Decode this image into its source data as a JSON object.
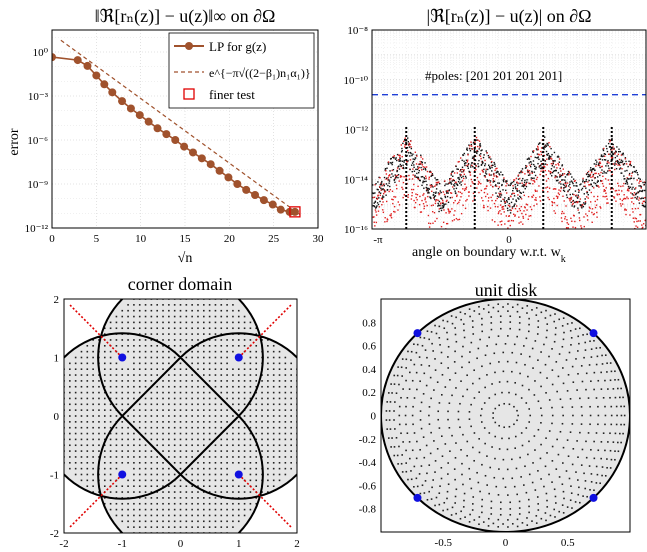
{
  "chart_data": [
    {
      "id": "error-plot",
      "type": "line",
      "title": "‖ℜ[rₙ(z)] − u(z)‖∞ on ∂Ω",
      "xlabel": "√n",
      "ylabel": "error",
      "xlim": [
        0,
        30
      ],
      "ylim_log10": [
        -12,
        1.5
      ],
      "yscale": "log",
      "xticks": [
        "0",
        "5",
        "10",
        "15",
        "20",
        "25",
        "30"
      ],
      "yticks": [
        {
          "exp": 0,
          "label": "10⁰"
        },
        {
          "exp": -3,
          "label": "10⁻³"
        },
        {
          "exp": -6,
          "label": "10⁻⁶"
        },
        {
          "exp": -9,
          "label": "10⁻⁹"
        },
        {
          "exp": -12,
          "label": "10⁻¹²"
        }
      ],
      "grid": true,
      "legend_position": "top-right",
      "legend": [
        "LP for g(z)",
        "e^{−π√((2−β₁)n₁α₁)}",
        "finer test"
      ],
      "series": [
        {
          "name": "LP for g(z)",
          "color": "#a0522d",
          "x": [
            0,
            2.83,
            4.0,
            4.9,
            5.66,
            6.32,
            6.93,
            7.48,
            8.0,
            8.49,
            8.94,
            9.38,
            9.8,
            10.2,
            10.58,
            10.95,
            11.31,
            11.66,
            12.0,
            12.33,
            12.65,
            12.96,
            13.27,
            13.56,
            13.86,
            14.14,
            14.42,
            14.7,
            14.97,
            15.23,
            15.49,
            15.75,
            16.0,
            16.25,
            16.49,
            16.73,
            16.97,
            17.2,
            17.44,
            17.66,
            17.89,
            18.11,
            18.33,
            18.55,
            18.76,
            18.97,
            19.18,
            19.39,
            19.6,
            19.8
          ],
          "x_display": [
            0,
            2.9,
            4.0,
            5.0,
            5.9,
            6.8,
            7.9,
            8.9,
            9.9,
            10.9,
            11.9,
            12.9,
            13.9,
            14.9,
            15.9,
            16.9,
            17.9,
            18.9,
            19.9,
            20.9,
            21.9,
            22.9,
            23.9,
            24.9,
            25.8,
            26.8,
            27.4
          ],
          "log10_y": [
            -0.35,
            -0.55,
            -0.95,
            -1.6,
            -2.2,
            -2.75,
            -3.35,
            -3.85,
            -4.3,
            -4.75,
            -5.2,
            -5.6,
            -6.0,
            -6.45,
            -6.85,
            -7.25,
            -7.65,
            -8.1,
            -8.55,
            -9.0,
            -9.4,
            -9.75,
            -10.1,
            -10.4,
            -10.75,
            -10.9,
            -10.9
          ]
        },
        {
          "name": "e^{−π√((2−β₁)n₁α₁)}",
          "color": "#a0522d",
          "style": "dashed",
          "x": [
            1,
            28
          ],
          "log10_y": [
            0.8,
            -11.1
          ]
        },
        {
          "name": "finer test",
          "color": "#e00000",
          "marker": "square",
          "x": [
            27.4
          ],
          "log10_y": [
            -10.9
          ]
        }
      ]
    },
    {
      "id": "boundary-error-plot",
      "type": "scatter",
      "title": "|ℜ[rₙ(z)] − u(z)| on ∂Ω",
      "xlabel": "angle on boundary w.r.t. w",
      "xlabel_subscript": "k",
      "xticks": [
        "-π",
        "0"
      ],
      "yscale": "log",
      "ylim_log10": [
        -16,
        -8
      ],
      "yticks": [
        {
          "exp": -8,
          "label": "10⁻⁸"
        },
        {
          "exp": -10,
          "label": "10⁻¹⁰"
        },
        {
          "exp": -12,
          "label": "10⁻¹²"
        },
        {
          "exp": -14,
          "label": "10⁻¹⁴"
        },
        {
          "exp": -16,
          "label": "10⁻¹⁶"
        }
      ],
      "grid": true,
      "annotation": "#poles: [201 201 201 201]",
      "reference_line_log10": -10.6,
      "reference_line_color": "#1f3fd6",
      "peak_positions": [
        0.125,
        0.375,
        0.625,
        0.875
      ],
      "peak_log10": -11.9
    },
    {
      "id": "corner-domain-plot",
      "type": "scatter",
      "title": "corner domain",
      "xlim": [
        -2,
        2
      ],
      "ylim": [
        -2,
        2
      ],
      "xticks": [
        "-2",
        "-1",
        "0",
        "1",
        "2"
      ],
      "yticks": [
        "2",
        "1",
        "0",
        "-1",
        "-2"
      ],
      "corners": [
        [
          1,
          1
        ],
        [
          -1,
          1
        ],
        [
          -1,
          -1
        ],
        [
          1,
          -1
        ]
      ],
      "corner_color": "#1010e0",
      "pole_line_color": "#e00000",
      "fill_color": "#e6e6e6"
    },
    {
      "id": "unit-disk-plot",
      "type": "scatter",
      "title": "unit disk",
      "xlim": [
        -1,
        1
      ],
      "ylim": [
        -1,
        1
      ],
      "xticks": [
        "-0.5",
        "0",
        "0.5"
      ],
      "yticks": [
        "0.8",
        "0.6",
        "0.4",
        "0.2",
        "0",
        "-0.2",
        "-0.4",
        "-0.6",
        "-0.8"
      ],
      "corners": [
        [
          0.707,
          0.707
        ],
        [
          -0.707,
          0.707
        ],
        [
          -0.707,
          -0.707
        ],
        [
          0.707,
          -0.707
        ]
      ],
      "corner_color": "#1010e0",
      "fill_color": "#e6e6e6"
    }
  ]
}
